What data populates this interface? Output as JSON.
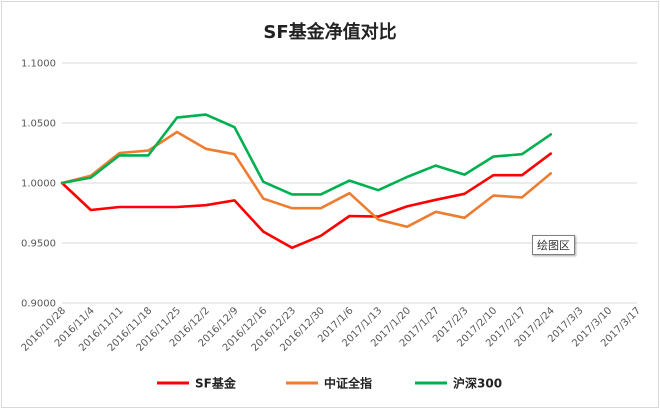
{
  "chart_data": {
    "type": "line",
    "title": "SF基金净值对比",
    "xlabel": "",
    "ylabel": "",
    "ylim": [
      0.9,
      1.1
    ],
    "y_ticks": [
      "0.9000",
      "0.9500",
      "1.0000",
      "1.0500",
      "1.1000"
    ],
    "grid": true,
    "legend_position": "bottom",
    "categories": [
      "2016/10/28",
      "2016/11/4",
      "2016/11/11",
      "2016/11/18",
      "2016/11/25",
      "2016/12/2",
      "2016/12/9",
      "2016/12/16",
      "2016/12/23",
      "2016/12/30",
      "2017/1/6",
      "2017/1/13",
      "2017/1/20",
      "2017/1/27",
      "2017/2/3",
      "2017/2/10",
      "2017/2/17",
      "2017/2/24",
      "2017/3/3",
      "2017/3/10",
      "2017/3/17"
    ],
    "series": [
      {
        "name": "SF基金",
        "color": "#ff0000",
        "values": [
          1.0,
          0.9775,
          0.98,
          0.98,
          0.98,
          0.9815,
          0.9855,
          0.9595,
          0.946,
          0.956,
          0.9725,
          0.972,
          0.9805,
          0.986,
          0.991,
          1.0065,
          1.0065,
          1.0245,
          null,
          null,
          null
        ]
      },
      {
        "name": "中证全指",
        "color": "#ed7d31",
        "values": [
          1.0,
          1.006,
          1.025,
          1.027,
          1.0425,
          1.0285,
          1.024,
          0.987,
          0.979,
          0.979,
          0.9915,
          0.9695,
          0.9635,
          0.976,
          0.971,
          0.9895,
          0.988,
          1.008,
          null,
          null,
          null
        ]
      },
      {
        "name": "沪深300",
        "color": "#00b050",
        "values": [
          1.0,
          1.0045,
          1.023,
          1.023,
          1.0545,
          1.057,
          1.0465,
          1.001,
          0.9905,
          0.9905,
          1.002,
          0.994,
          1.005,
          1.0145,
          1.007,
          1.022,
          1.024,
          1.0405,
          null,
          null,
          null
        ]
      }
    ]
  },
  "tooltip": {
    "label": "绘图区"
  }
}
